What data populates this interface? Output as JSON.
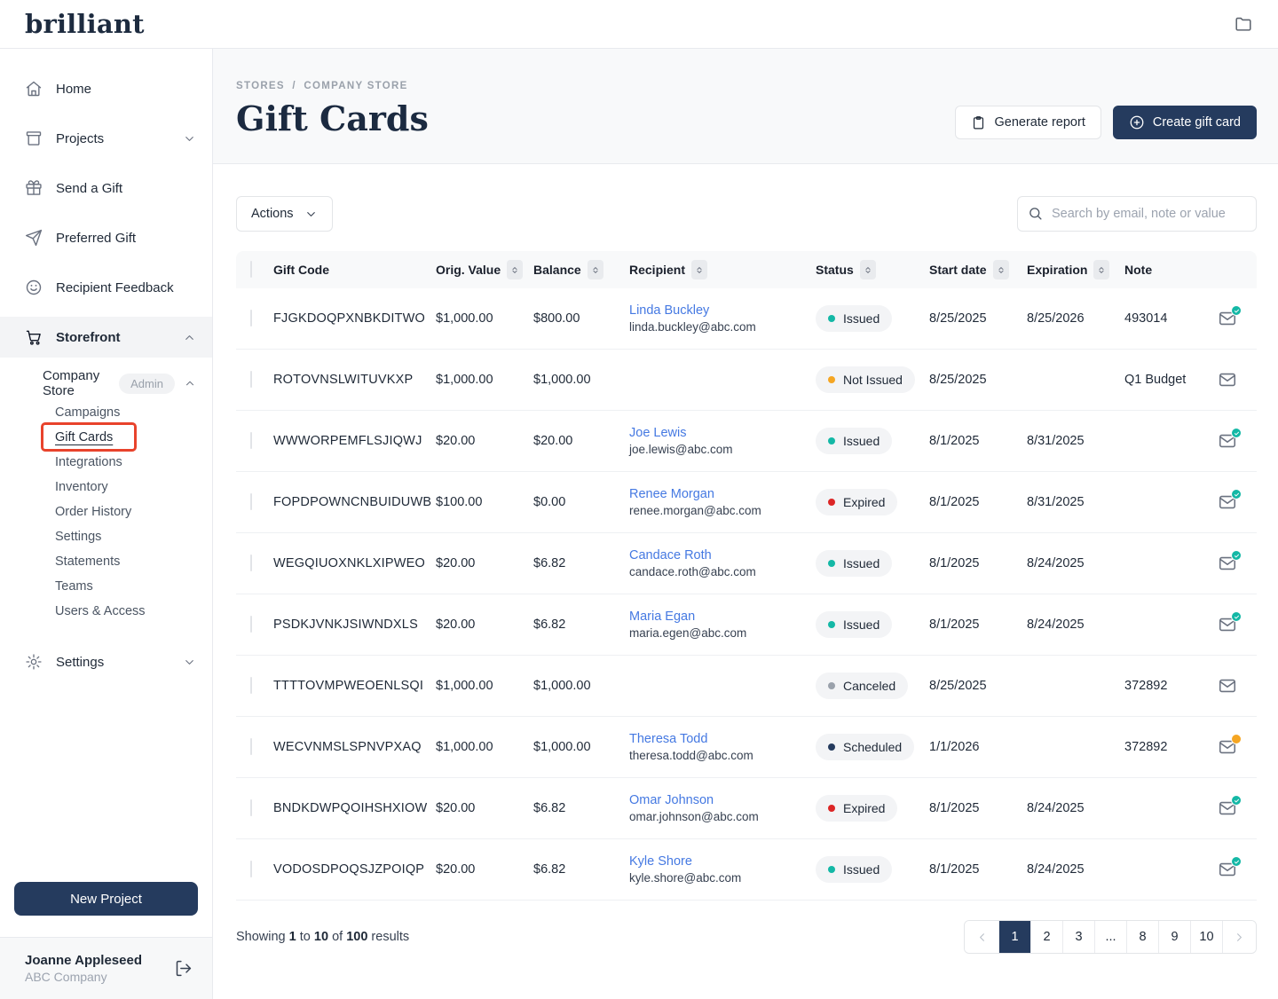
{
  "colors": {
    "accent_navy": "#253b5e",
    "link_blue": "#4579e2",
    "annotation_red": "#e8432c",
    "issued_teal": "#14b8a6",
    "not_issued_amber": "#f5a623",
    "expired_red": "#dc2626",
    "canceled_gray": "#9aa1ab",
    "scheduled_navy": "#253b5e"
  },
  "topbar": {
    "logo": "brilliant",
    "right_icon": "folder-icon"
  },
  "sidebar": {
    "items": [
      {
        "label": "Home",
        "icon": "home-icon"
      },
      {
        "label": "Projects",
        "icon": "archive-box-icon",
        "chevron": "down"
      },
      {
        "label": "Send a Gift",
        "icon": "gift-icon"
      },
      {
        "label": "Preferred Gift",
        "icon": "paper-plane-icon"
      },
      {
        "label": "Recipient Feedback",
        "icon": "smiley-icon"
      },
      {
        "label": "Storefront",
        "icon": "cart-icon",
        "chevron": "up",
        "active": true
      }
    ],
    "store": {
      "label": "Company Store",
      "badge": "Admin",
      "chevron": "up"
    },
    "store_items": [
      "Campaigns",
      "Gift Cards",
      "Integrations",
      "Inventory",
      "Order History",
      "Settings",
      "Statements",
      "Teams",
      "Users & Access"
    ],
    "active_store_item": "Gift Cards",
    "settings": {
      "label": "Settings",
      "icon": "gear-icon",
      "chevron": "down"
    },
    "new_project_label": "New Project",
    "user": {
      "name": "Joanne Appleseed",
      "company": "ABC Company",
      "icon": "logout-icon"
    }
  },
  "header": {
    "breadcrumb": {
      "parts": [
        "STORES",
        "COMPANY STORE"
      ],
      "separator": "/"
    },
    "title": "Gift Cards",
    "generate_report_label": "Generate report",
    "create_gift_card_label": "Create gift card"
  },
  "toolbar": {
    "actions_label": "Actions",
    "search_placeholder": "Search by email, note or value"
  },
  "table": {
    "columns": [
      "Gift Code",
      "Orig. Value",
      "Balance",
      "Recipient",
      "Status",
      "Start date",
      "Expiration",
      "Note"
    ],
    "status_colors": {
      "Issued": "#14b8a6",
      "Not Issued": "#f5a623",
      "Expired": "#dc2626",
      "Canceled": "#9aa1ab",
      "Scheduled": "#253b5e"
    },
    "rows": [
      {
        "code": "FJGKDOQPXNBKDITWO",
        "orig": "$1,000.00",
        "balance": "$800.00",
        "name": "Linda Buckley",
        "email": "linda.buckley@abc.com",
        "status": "Issued",
        "start": "8/25/2025",
        "exp": "8/25/2026",
        "note": "493014",
        "mail": "sent"
      },
      {
        "code": "ROTOVNSLWITUVKXP",
        "orig": "$1,000.00",
        "balance": "$1,000.00",
        "name": "",
        "email": "",
        "status": "Not Issued",
        "start": "8/25/2025",
        "exp": "",
        "note": "Q1 Budget",
        "mail": "plain"
      },
      {
        "code": "WWWORPEMFLSJIQWJ",
        "orig": "$20.00",
        "balance": "$20.00",
        "name": "Joe Lewis",
        "email": "joe.lewis@abc.com",
        "status": "Issued",
        "start": "8/1/2025",
        "exp": "8/31/2025",
        "note": "",
        "mail": "sent"
      },
      {
        "code": "FOPDPOWNCNBUIDUWB",
        "orig": "$100.00",
        "balance": "$0.00",
        "name": "Renee Morgan",
        "email": "renee.morgan@abc.com",
        "status": "Expired",
        "start": "8/1/2025",
        "exp": "8/31/2025",
        "note": "",
        "mail": "sent"
      },
      {
        "code": "WEGQIUOXNKLXIPWEO",
        "orig": "$20.00",
        "balance": "$6.82",
        "name": "Candace Roth",
        "email": "candace.roth@abc.com",
        "status": "Issued",
        "start": "8/1/2025",
        "exp": "8/24/2025",
        "note": "",
        "mail": "sent"
      },
      {
        "code": "PSDKJVNKJSIWNDXLS",
        "orig": "$20.00",
        "balance": "$6.82",
        "name": "Maria Egan",
        "email": "maria.egen@abc.com",
        "status": "Issued",
        "start": "8/1/2025",
        "exp": "8/24/2025",
        "note": "",
        "mail": "sent"
      },
      {
        "code": "TTTTOVMPWEOENLSQI",
        "orig": "$1,000.00",
        "balance": "$1,000.00",
        "name": "",
        "email": "",
        "status": "Canceled",
        "start": "8/25/2025",
        "exp": "",
        "note": "372892",
        "mail": "plain"
      },
      {
        "code": "WECVNMSLSPNVPXAQ",
        "orig": "$1,000.00",
        "balance": "$1,000.00",
        "name": "Theresa Todd",
        "email": "theresa.todd@abc.com",
        "status": "Scheduled",
        "start": "1/1/2026",
        "exp": "",
        "note": "372892",
        "mail": "pending"
      },
      {
        "code": "BNDKDWPQOIHSHXIOW",
        "orig": "$20.00",
        "balance": "$6.82",
        "name": "Omar Johnson",
        "email": "omar.johnson@abc.com",
        "status": "Expired",
        "start": "8/1/2025",
        "exp": "8/24/2025",
        "note": "",
        "mail": "sent"
      },
      {
        "code": "VODOSDPOQSJZPOIQP",
        "orig": "$20.00",
        "balance": "$6.82",
        "name": "Kyle Shore",
        "email": "kyle.shore@abc.com",
        "status": "Issued",
        "start": "8/1/2025",
        "exp": "8/24/2025",
        "note": "",
        "mail": "sent"
      }
    ]
  },
  "footer": {
    "showing": {
      "prefix": "Showing",
      "from": "1",
      "mid1": "to",
      "to": "10",
      "mid2": "of",
      "total": "100",
      "suffix": "results"
    },
    "pages": [
      "1",
      "2",
      "3",
      "...",
      "8",
      "9",
      "10"
    ],
    "active_page": "1"
  }
}
